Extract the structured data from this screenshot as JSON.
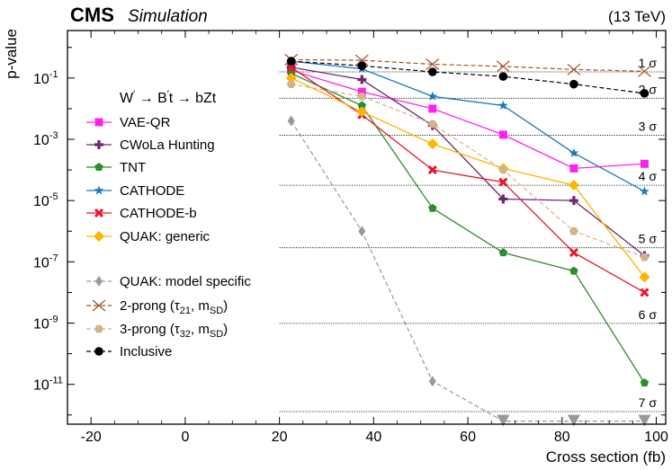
{
  "header": {
    "experiment": "CMS",
    "label": "Simulation",
    "energy": "(13 TeV)"
  },
  "chart_data": {
    "type": "line",
    "xlabel": "Cross section (fb)",
    "ylabel": "p-value",
    "xlim": [
      -25,
      102
    ],
    "ylim_log10": [
      -12.3,
      0.55
    ],
    "yscale": "log",
    "x_ticks": [
      {
        "value": -20,
        "label": "-20"
      },
      {
        "value": 0,
        "label": "0"
      },
      {
        "value": 20,
        "label": "20"
      },
      {
        "value": 40,
        "label": "40"
      },
      {
        "value": 60,
        "label": "60"
      },
      {
        "value": 80,
        "label": "80"
      },
      {
        "value": 100,
        "label": "100"
      }
    ],
    "y_ticks": [
      {
        "exp": -1,
        "label": "10^-1"
      },
      {
        "exp": -3,
        "label": "10^-3"
      },
      {
        "exp": -5,
        "label": "10^-5"
      },
      {
        "exp": -7,
        "label": "10^-7"
      },
      {
        "exp": -9,
        "label": "10^-9"
      },
      {
        "exp": -11,
        "label": "10^-11"
      }
    ],
    "sigma_lines": [
      {
        "label": "1 σ",
        "log10p": -0.8
      },
      {
        "label": "2 σ",
        "log10p": -1.66
      },
      {
        "label": "3 σ",
        "log10p": -2.87
      },
      {
        "label": "4 σ",
        "log10p": -4.5
      },
      {
        "label": "5 σ",
        "log10p": -6.54
      },
      {
        "label": "6 σ",
        "log10p": -9.01
      },
      {
        "label": "7 σ",
        "log10p": -11.89
      }
    ],
    "legend_title": "W′ → B′t → bZt",
    "legend_title_parts": {
      "w": "W",
      "sep1": " → B",
      "sep2": "t → bZt",
      "prime": "′"
    },
    "x": [
      22.5,
      37.5,
      52.5,
      67.5,
      82.5,
      97.5
    ],
    "series": [
      {
        "name": "VAE-QR",
        "color": "#ff22ee",
        "marker": "square",
        "dashed": false,
        "log10p": [
          -0.75,
          -1.45,
          -2.0,
          -2.85,
          -3.95,
          -3.8
        ]
      },
      {
        "name": "CWoLa Hunting",
        "color": "#6b2a6b",
        "marker": "plus",
        "dashed": false,
        "log10p": [
          -0.65,
          -1.05,
          -2.55,
          -4.95,
          -5.0,
          -6.8
        ]
      },
      {
        "name": "TNT",
        "color": "#2e8b2e",
        "marker": "pentagon",
        "dashed": false,
        "log10p": [
          -0.85,
          -1.9,
          -5.25,
          -6.7,
          -7.3,
          -10.95
        ]
      },
      {
        "name": "CATHODE",
        "color": "#1f77b4",
        "marker": "star",
        "dashed": false,
        "log10p": [
          -0.45,
          -0.7,
          -1.6,
          -1.9,
          -3.45,
          -4.7
        ]
      },
      {
        "name": "CATHODE-b",
        "color": "#e8162c",
        "marker": "x",
        "dashed": false,
        "log10p": [
          -0.65,
          -2.2,
          -4.0,
          -4.4,
          -6.7,
          -8.0
        ]
      },
      {
        "name": "QUAK: generic",
        "color": "#ffb400",
        "marker": "diamond",
        "dashed": false,
        "log10p": [
          -1.0,
          -2.1,
          -3.15,
          -3.95,
          -4.5,
          -7.5
        ]
      },
      {
        "name": "QUAK: model specific",
        "color": "#999999",
        "marker": "thin-diamond",
        "dashed": true,
        "log10p": [
          -2.4,
          -6.0,
          -10.9,
          -12.2,
          -12.2,
          -12.2
        ]
      },
      {
        "name": "2-prong (τ21, mSD)",
        "color": "#a0522d",
        "marker": "bigx",
        "dashed": true,
        "log10p": [
          -0.4,
          -0.42,
          -0.55,
          -0.62,
          -0.72,
          -0.78
        ]
      },
      {
        "name": "3-prong (τ32, mSD)",
        "color": "#d2b48c",
        "marker": "hexagon",
        "dashed": true,
        "log10p": [
          -1.2,
          -1.6,
          -2.5,
          -4.0,
          -6.0,
          -6.85
        ]
      },
      {
        "name": "Inclusive",
        "color": "#000000",
        "marker": "circle",
        "dashed": true,
        "log10p": [
          -0.45,
          -0.6,
          -0.8,
          -0.95,
          -1.2,
          -1.5
        ]
      }
    ]
  },
  "legend_labels": {
    "l2prong": {
      "a": "2-prong (τ",
      "sub1": "21",
      "b": ", m",
      "sub2": "SD",
      "c": ")"
    },
    "l3prong": {
      "a": "3-prong (τ",
      "sub1": "32",
      "b": ", m",
      "sub2": "SD",
      "c": ")"
    }
  }
}
